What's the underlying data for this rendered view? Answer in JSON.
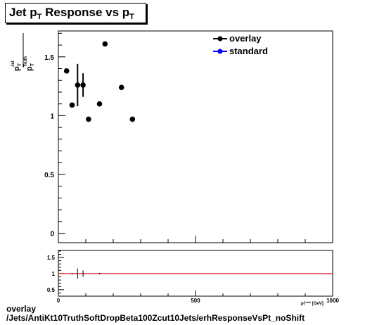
{
  "title": {
    "main": "Jet p",
    "sub1": "T",
    "mid": " Response vs p",
    "sub2": "T"
  },
  "y_axis_title": {
    "num": "p",
    "num_sup": "Jet",
    "num_sub": "T",
    "den": "p",
    "den_sup": "Truth",
    "den_sub": "T"
  },
  "x_axis_title": {
    "text": "p",
    "sup": "Truth",
    "sub": "T",
    "tail": " [GeV]"
  },
  "footer": {
    "line1": "overlay",
    "line2": "/Jets/AntiKt10TruthSoftDropBeta100Zcut10Jets/erhResponseVsPt_noShift"
  },
  "colors": {
    "overlay": "#000000",
    "standard": "#0000ff",
    "ratio_line": "#cc0000"
  },
  "chart_data": [
    {
      "type": "scatter",
      "xlim": [
        0,
        1000
      ],
      "ylim": [
        -0.08,
        1.72
      ],
      "yticks": [
        0,
        0.5,
        1,
        1.5
      ],
      "ytick_labels": [
        "0",
        "0.5",
        "1",
        "1.5"
      ],
      "xtick_labels": [
        "0",
        "500",
        "1000"
      ],
      "legend": [
        "overlay",
        "standard"
      ],
      "legend_position": "top-right",
      "series": [
        {
          "name": "overlay",
          "color": "#000000",
          "points": [
            {
              "x": 30,
              "y": 1.38,
              "yerr": 0.0
            },
            {
              "x": 50,
              "y": 1.09,
              "yerr": 0.0
            },
            {
              "x": 70,
              "y": 1.26,
              "yerr": 0.18
            },
            {
              "x": 90,
              "y": 1.26,
              "yerr": 0.1
            },
            {
              "x": 110,
              "y": 0.97,
              "yerr": 0.0
            },
            {
              "x": 150,
              "y": 1.1,
              "yerr": 0.0
            },
            {
              "x": 170,
              "y": 1.61,
              "yerr": 0.0
            },
            {
              "x": 230,
              "y": 1.24,
              "yerr": 0.0
            },
            {
              "x": 270,
              "y": 0.97,
              "yerr": 0.0
            }
          ]
        },
        {
          "name": "standard",
          "color": "#0000ff",
          "points": []
        }
      ]
    },
    {
      "type": "line",
      "xlim": [
        0,
        1000
      ],
      "ylim": [
        0.3,
        1.72
      ],
      "yticks": [
        0.5,
        1,
        1.5
      ],
      "ytick_labels": [
        "0.5",
        "1",
        "1.5"
      ],
      "reference_line": 1.0,
      "ratio_points": [
        {
          "x": 50,
          "y": 1.0,
          "yerr": 0.02
        },
        {
          "x": 70,
          "y": 1.0,
          "yerr": 0.16
        },
        {
          "x": 90,
          "y": 1.0,
          "yerr": 0.1
        },
        {
          "x": 150,
          "y": 1.0,
          "yerr": 0.02
        }
      ]
    }
  ]
}
